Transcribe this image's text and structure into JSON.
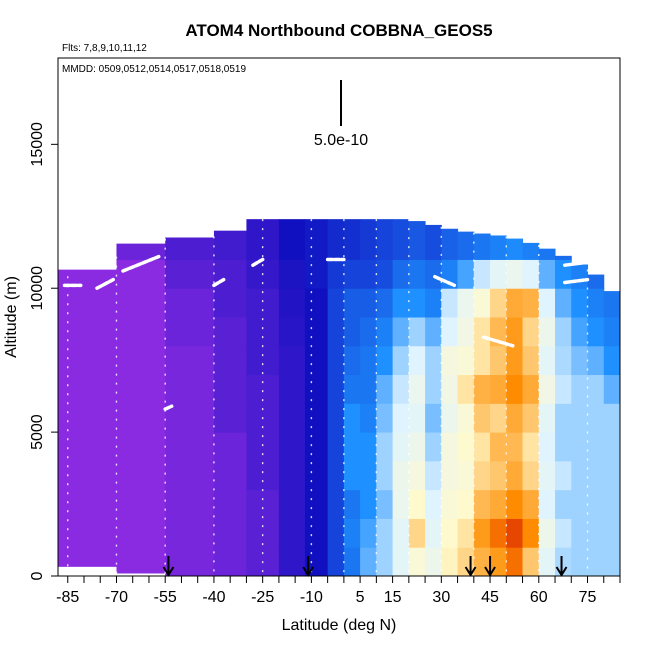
{
  "chart_data": {
    "type": "heatmap",
    "title": "ATOM4 Northbound COBBNA_GEOS5",
    "flights_note": "Flts: 7,8,9,10,11,12",
    "dates_note": "MMDD: 0509,0512,0514,0517,0518,0519",
    "xlabel": "Latitude (deg N)",
    "ylabel": "Altitude (m)",
    "xlim": [
      -88,
      85
    ],
    "ylim": [
      0,
      18000
    ],
    "x_ticks": [
      -85,
      -70,
      -55,
      -40,
      -25,
      -10,
      5,
      15,
      30,
      45,
      60,
      75
    ],
    "y_ticks": [
      0,
      5000,
      10000,
      15000
    ],
    "scale_bar_label": "5.0e-10",
    "grid": false,
    "colors": {
      "low": "#8a2be2",
      "mid_low": "#1010c0",
      "mid": "#1e90ff",
      "mid_high": "#fffacd",
      "high": "#ff8c00",
      "max": "#cc0000"
    },
    "column_top_altitude_m": [
      [
        -88,
        10300
      ],
      [
        -75,
        10800
      ],
      [
        -60,
        11700
      ],
      [
        -40,
        11800
      ],
      [
        -25,
        12400
      ],
      [
        -10,
        12400
      ],
      [
        5,
        12400
      ],
      [
        20,
        12400
      ],
      [
        35,
        12000
      ],
      [
        50,
        11800
      ],
      [
        60,
        11500
      ],
      [
        70,
        11000
      ],
      [
        80,
        10300
      ],
      [
        85,
        9500
      ]
    ],
    "column_bottom_altitude_m": [
      [
        -88,
        1000
      ],
      [
        -82,
        1000
      ],
      [
        -80,
        350
      ],
      [
        -55,
        0
      ],
      [
        85,
        0
      ]
    ],
    "flight_profiles_deg_N": [
      -85,
      -70,
      -55,
      -40,
      -25,
      -10,
      0,
      10,
      20,
      30,
      40,
      50,
      60,
      75
    ],
    "flight_track_segments": [
      {
        "lat": [
          -86,
          -81
        ],
        "alt": [
          10100,
          10100
        ]
      },
      {
        "lat": [
          -76,
          -71
        ],
        "alt": [
          10000,
          10300
        ]
      },
      {
        "lat": [
          -68,
          -57
        ],
        "alt": [
          10600,
          11100
        ]
      },
      {
        "lat": [
          -40,
          -37
        ],
        "alt": [
          10100,
          10300
        ]
      },
      {
        "lat": [
          -28,
          -25
        ],
        "alt": [
          10800,
          11000
        ]
      },
      {
        "lat": [
          -5,
          0
        ],
        "alt": [
          11000,
          11000
        ]
      },
      {
        "lat": [
          28,
          34
        ],
        "alt": [
          10400,
          10100
        ]
      },
      {
        "lat": [
          68,
          75
        ],
        "alt": [
          10800,
          10900
        ]
      },
      {
        "lat": [
          68,
          75
        ],
        "alt": [
          10200,
          10300
        ]
      },
      {
        "lat": [
          43,
          52
        ],
        "alt": [
          8300,
          8000
        ]
      },
      {
        "lat": [
          -55,
          -53
        ],
        "alt": [
          5800,
          5900
        ]
      }
    ],
    "sounding_markers_deg_N": [
      -54,
      -11,
      39,
      45,
      67
    ],
    "concentration_grid_deg_N": {
      "lat_edges": [
        -88,
        -70,
        -55,
        -40,
        -30,
        -20,
        -12,
        -5,
        0,
        5,
        10,
        15,
        20,
        25,
        30,
        35,
        40,
        45,
        50,
        55,
        60,
        65,
        70,
        75,
        80,
        85
      ],
      "alt_bands_m": [
        [
          0,
          1000
        ],
        [
          1000,
          2000
        ],
        [
          2000,
          3000
        ],
        [
          3000,
          4000
        ],
        [
          4000,
          5000
        ],
        [
          5000,
          6000
        ],
        [
          6000,
          7000
        ],
        [
          7000,
          8000
        ],
        [
          8000,
          9000
        ],
        [
          9000,
          10000
        ],
        [
          10000,
          11000
        ],
        [
          11000,
          12500
        ]
      ],
      "value_scale_0_to_1": [
        [
          0.0,
          0.0,
          0.0,
          0.0,
          0.0,
          0.0,
          0.0,
          0.0,
          0.0,
          0.0,
          0.0,
          0.0
        ],
        [
          0.0,
          0.0,
          0.0,
          0.0,
          0.0,
          0.0,
          0.0,
          0.0,
          0.0,
          0.0,
          0.0,
          0.05
        ],
        [
          0.03,
          0.03,
          0.03,
          0.03,
          0.03,
          0.03,
          0.03,
          0.03,
          0.05,
          0.05,
          0.08,
          0.1
        ],
        [
          0.05,
          0.05,
          0.05,
          0.05,
          0.05,
          0.08,
          0.08,
          0.08,
          0.08,
          0.1,
          0.1,
          0.12
        ],
        [
          0.08,
          0.08,
          0.08,
          0.1,
          0.1,
          0.1,
          0.1,
          0.12,
          0.12,
          0.12,
          0.14,
          0.15
        ],
        [
          0.15,
          0.15,
          0.15,
          0.15,
          0.15,
          0.15,
          0.15,
          0.15,
          0.16,
          0.17,
          0.18,
          0.2
        ],
        [
          0.2,
          0.2,
          0.2,
          0.2,
          0.2,
          0.2,
          0.2,
          0.2,
          0.2,
          0.2,
          0.22,
          0.22
        ],
        [
          0.3,
          0.3,
          0.3,
          0.3,
          0.3,
          0.3,
          0.3,
          0.3,
          0.3,
          0.3,
          0.28,
          0.25
        ],
        [
          0.4,
          0.42,
          0.4,
          0.45,
          0.45,
          0.45,
          0.4,
          0.38,
          0.35,
          0.35,
          0.3,
          0.26
        ],
        [
          0.5,
          0.48,
          0.45,
          0.45,
          0.45,
          0.42,
          0.4,
          0.4,
          0.38,
          0.35,
          0.3,
          0.28
        ],
        [
          0.55,
          0.55,
          0.52,
          0.55,
          0.55,
          0.52,
          0.5,
          0.45,
          0.42,
          0.38,
          0.32,
          0.3
        ],
        [
          0.62,
          0.62,
          0.65,
          0.66,
          0.62,
          0.6,
          0.58,
          0.55,
          0.5,
          0.45,
          0.38,
          0.32
        ],
        [
          0.72,
          0.8,
          0.75,
          0.7,
          0.66,
          0.62,
          0.65,
          0.6,
          0.55,
          0.45,
          0.4,
          0.34
        ],
        [
          0.66,
          0.62,
          0.6,
          0.58,
          0.55,
          0.52,
          0.55,
          0.55,
          0.5,
          0.42,
          0.38,
          0.32
        ],
        [
          0.76,
          0.75,
          0.72,
          0.7,
          0.7,
          0.65,
          0.68,
          0.7,
          0.6,
          0.58,
          0.42,
          0.36
        ],
        [
          0.8,
          0.78,
          0.75,
          0.72,
          0.74,
          0.72,
          0.78,
          0.72,
          0.68,
          0.65,
          0.48,
          0.38
        ],
        [
          0.85,
          0.88,
          0.84,
          0.8,
          0.78,
          0.82,
          0.85,
          0.78,
          0.78,
          0.72,
          0.58,
          0.4
        ],
        [
          0.88,
          0.92,
          0.86,
          0.82,
          0.84,
          0.8,
          0.86,
          0.82,
          0.84,
          0.8,
          0.62,
          0.42
        ],
        [
          0.92,
          0.95,
          0.9,
          0.86,
          0.84,
          0.86,
          0.9,
          0.88,
          0.88,
          0.86,
          0.65,
          0.44
        ],
        [
          0.82,
          0.9,
          0.86,
          0.8,
          0.78,
          0.82,
          0.86,
          0.82,
          0.8,
          0.85,
          0.6,
          0.42
        ],
        [
          0.62,
          0.66,
          0.6,
          0.62,
          0.6,
          0.62,
          0.68,
          0.62,
          0.66,
          0.6,
          0.5,
          0.4
        ],
        [
          0.56,
          0.58,
          0.55,
          0.58,
          0.55,
          0.55,
          0.58,
          0.56,
          0.55,
          0.5,
          0.45,
          0.38
        ],
        [
          0.55,
          0.55,
          0.55,
          0.55,
          0.55,
          0.55,
          0.55,
          0.52,
          0.48,
          0.45,
          0.42,
          0.36
        ],
        [
          0.55,
          0.55,
          0.55,
          0.55,
          0.55,
          0.55,
          0.55,
          0.5,
          0.45,
          0.42,
          0.38,
          0.35
        ],
        [
          0.55,
          0.55,
          0.55,
          0.55,
          0.55,
          0.55,
          0.5,
          0.45,
          0.42,
          0.4,
          0.36,
          0.34
        ]
      ]
    }
  }
}
